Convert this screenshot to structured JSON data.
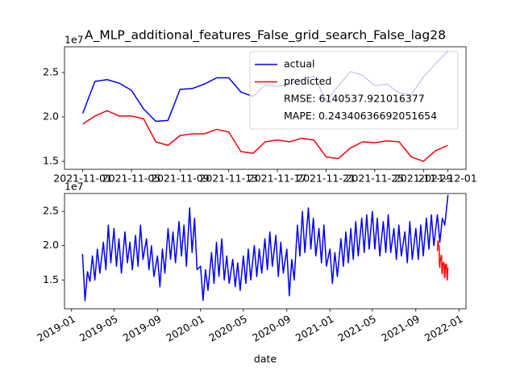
{
  "chart_data": [
    {
      "type": "line",
      "title": "A_MLP_additional_features_False_grid_search_False_lag28",
      "offset_text": "1e7",
      "legend": "upper right",
      "legend_notes": [
        "RMSE: 6140537.921016377",
        "MAPE: 0.24340636692051654"
      ],
      "grid": false,
      "x": [
        "2021-11-01",
        "2021-11-02",
        "2021-11-03",
        "2021-11-04",
        "2021-11-05",
        "2021-11-06",
        "2021-11-07",
        "2021-11-08",
        "2021-11-09",
        "2021-11-10",
        "2021-11-11",
        "2021-11-12",
        "2021-11-13",
        "2021-11-14",
        "2021-11-15",
        "2021-11-16",
        "2021-11-17",
        "2021-11-18",
        "2021-11-19",
        "2021-11-20",
        "2021-11-21",
        "2021-11-22",
        "2021-11-23",
        "2021-11-24",
        "2021-11-25",
        "2021-11-26",
        "2021-11-27",
        "2021-11-28",
        "2021-11-29",
        "2021-11-30",
        "2021-12-01"
      ],
      "series": [
        {
          "name": "actual",
          "color": "#0000ff",
          "values": [
            20400000.0,
            24000000.0,
            24200000.0,
            23800000.0,
            23000000.0,
            20900000.0,
            19500000.0,
            19600000.0,
            23100000.0,
            23200000.0,
            23700000.0,
            24400000.0,
            24400000.0,
            22800000.0,
            22300000.0,
            23600000.0,
            23400000.0,
            23700000.0,
            24200000.0,
            24600000.0,
            21800000.0,
            23500000.0,
            25100000.0,
            24700000.0,
            23500000.0,
            23700000.0,
            22700000.0,
            22500000.0,
            24500000.0,
            26000000.0,
            27400000.0
          ]
        },
        {
          "name": "predicted",
          "color": "#ff0000",
          "values": [
            19200000.0,
            20100000.0,
            20700000.0,
            20100000.0,
            20100000.0,
            19800000.0,
            17200000.0,
            16800000.0,
            17900000.0,
            18100000.0,
            18100000.0,
            18600000.0,
            18300000.0,
            16100000.0,
            15900000.0,
            17200000.0,
            17400000.0,
            17200000.0,
            17600000.0,
            17400000.0,
            15500000.0,
            15300000.0,
            16500000.0,
            17200000.0,
            17100000.0,
            17300000.0,
            17200000.0,
            15500000.0,
            15000000.0,
            16200000.0,
            16800000.0
          ]
        }
      ],
      "xlim": [
        "2021-10-30T12:00",
        "2021-12-02T12:00"
      ],
      "xticks": [
        "2021-11-01",
        "2021-11-05",
        "2021-11-09",
        "2021-11-13",
        "2021-11-17",
        "2021-11-21",
        "2021-11-25",
        "2021-11-29",
        "2021-12-01"
      ],
      "ylim": [
        14100000.0,
        27900000.0
      ],
      "yticks": [
        {
          "value": 15000000.0,
          "label": "1.5"
        },
        {
          "value": 20000000.0,
          "label": "2.0"
        },
        {
          "value": 25000000.0,
          "label": "2.5"
        }
      ]
    },
    {
      "type": "line",
      "offset_text": "1e7",
      "xlabel": "date",
      "grid": false,
      "x": [
        "2019-02-01",
        "2019-02-08",
        "2019-02-15",
        "2019-02-22",
        "2019-03-01",
        "2019-03-08",
        "2019-03-15",
        "2019-03-22",
        "2019-04-01",
        "2019-04-08",
        "2019-04-15",
        "2019-04-22",
        "2019-05-01",
        "2019-05-08",
        "2019-05-15",
        "2019-05-22",
        "2019-06-01",
        "2019-06-08",
        "2019-06-15",
        "2019-06-22",
        "2019-07-01",
        "2019-07-08",
        "2019-07-15",
        "2019-07-22",
        "2019-08-01",
        "2019-08-08",
        "2019-08-15",
        "2019-08-22",
        "2019-09-01",
        "2019-09-08",
        "2019-09-15",
        "2019-09-22",
        "2019-10-01",
        "2019-10-08",
        "2019-10-15",
        "2019-10-22",
        "2019-11-01",
        "2019-11-08",
        "2019-11-15",
        "2019-11-22",
        "2019-12-01",
        "2019-12-08",
        "2019-12-15",
        "2019-12-22",
        "2020-01-01",
        "2020-01-08",
        "2020-01-15",
        "2020-01-22",
        "2020-02-01",
        "2020-02-08",
        "2020-02-15",
        "2020-02-22",
        "2020-03-01",
        "2020-03-08",
        "2020-03-15",
        "2020-03-22",
        "2020-04-01",
        "2020-04-08",
        "2020-04-15",
        "2020-04-22",
        "2020-05-01",
        "2020-05-08",
        "2020-05-15",
        "2020-05-22",
        "2020-06-01",
        "2020-06-08",
        "2020-06-15",
        "2020-06-22",
        "2020-07-01",
        "2020-07-08",
        "2020-07-15",
        "2020-07-22",
        "2020-08-01",
        "2020-08-08",
        "2020-08-15",
        "2020-08-22",
        "2020-09-01",
        "2020-09-08",
        "2020-09-15",
        "2020-09-22",
        "2020-10-01",
        "2020-10-08",
        "2020-10-15",
        "2020-10-22",
        "2020-11-01",
        "2020-11-08",
        "2020-11-15",
        "2020-11-22",
        "2020-12-01",
        "2020-12-08",
        "2020-12-15",
        "2020-12-22",
        "2021-01-01",
        "2021-01-08",
        "2021-01-15",
        "2021-01-22",
        "2021-02-01",
        "2021-02-08",
        "2021-02-15",
        "2021-02-22",
        "2021-03-01",
        "2021-03-08",
        "2021-03-15",
        "2021-03-22",
        "2021-04-01",
        "2021-04-08",
        "2021-04-15",
        "2021-04-22",
        "2021-05-01",
        "2021-05-08",
        "2021-05-15",
        "2021-05-22",
        "2021-06-01",
        "2021-06-08",
        "2021-06-15",
        "2021-06-22",
        "2021-07-01",
        "2021-07-08",
        "2021-07-15",
        "2021-07-22",
        "2021-08-01",
        "2021-08-08",
        "2021-08-15",
        "2021-08-22",
        "2021-09-01",
        "2021-09-08",
        "2021-09-15",
        "2021-09-22",
        "2021-10-01",
        "2021-10-08",
        "2021-10-15",
        "2021-10-22",
        "2021-11-01",
        "2021-11-08",
        "2021-11-15",
        "2021-11-22",
        "2021-12-01"
      ],
      "series": [
        {
          "color": "#0000ff",
          "values": [
            18800000.0,
            12000000.0,
            16200000.0,
            14800000.0,
            18500000.0,
            15000000.0,
            19500000.0,
            16000000.0,
            20500000.0,
            16500000.0,
            23000000.0,
            17500000.0,
            22500000.0,
            17000000.0,
            21000000.0,
            16000000.0,
            22000000.0,
            17500000.0,
            20500000.0,
            16500000.0,
            21500000.0,
            17000000.0,
            23000000.0,
            18000000.0,
            21000000.0,
            16500000.0,
            20000000.0,
            15500000.0,
            18500000.0,
            14000000.0,
            19500000.0,
            16000000.0,
            22500000.0,
            18000000.0,
            22000000.0,
            17500000.0,
            23500000.0,
            18500000.0,
            23000000.0,
            17000000.0,
            25500000.0,
            19000000.0,
            24000000.0,
            16500000.0,
            17000000.0,
            12000000.0,
            16500000.0,
            13500000.0,
            19000000.0,
            14500000.0,
            20500000.0,
            15500000.0,
            21000000.0,
            15000000.0,
            18500000.0,
            14500000.0,
            18000000.0,
            14000000.0,
            17500000.0,
            13500000.0,
            18500000.0,
            14500000.0,
            19500000.0,
            15000000.0,
            20000000.0,
            15500000.0,
            19500000.0,
            16000000.0,
            21000000.0,
            16500000.0,
            22000000.0,
            17000000.0,
            21500000.0,
            15500000.0,
            20500000.0,
            16000000.0,
            19500000.0,
            12700000.0,
            18000000.0,
            15000000.0,
            23000000.0,
            18500000.0,
            25000000.0,
            19000000.0,
            25500000.0,
            19500000.0,
            24000000.0,
            18500000.0,
            22500000.0,
            17500000.0,
            23000000.0,
            17000000.0,
            19500000.0,
            14500000.0,
            19000000.0,
            15500000.0,
            21000000.0,
            17000000.0,
            22000000.0,
            17500000.0,
            22500000.0,
            18000000.0,
            23500000.0,
            18500000.0,
            24000000.0,
            19000000.0,
            24500000.0,
            19500000.0,
            25000000.0,
            19500000.0,
            24000000.0,
            18500000.0,
            23500000.0,
            19000000.0,
            24500000.0,
            19000000.0,
            22500000.0,
            18000000.0,
            23000000.0,
            18500000.0,
            22000000.0,
            17500000.0,
            23500000.0,
            18000000.0,
            22500000.0,
            18000000.0,
            23000000.0,
            18500000.0,
            24000000.0,
            19500000.0,
            24500000.0,
            20000000.0,
            24500000.0,
            20500000.0,
            24000000.0,
            23000000.0,
            27400000.0
          ]
        },
        {
          "color": "#ff0000",
          "x": [
            "2021-11-01",
            "2021-11-02",
            "2021-11-03",
            "2021-11-04",
            "2021-11-05",
            "2021-11-06",
            "2021-11-07",
            "2021-11-08",
            "2021-11-09",
            "2021-11-10",
            "2021-11-11",
            "2021-11-12",
            "2021-11-13",
            "2021-11-14",
            "2021-11-15",
            "2021-11-16",
            "2021-11-17",
            "2021-11-18",
            "2021-11-19",
            "2021-11-20",
            "2021-11-21",
            "2021-11-22",
            "2021-11-23",
            "2021-11-24",
            "2021-11-25",
            "2021-11-26",
            "2021-11-27",
            "2021-11-28",
            "2021-11-29",
            "2021-11-30",
            "2021-12-01"
          ],
          "values": [
            19200000.0,
            20100000.0,
            20700000.0,
            20100000.0,
            20100000.0,
            19800000.0,
            17200000.0,
            16800000.0,
            17900000.0,
            18100000.0,
            18100000.0,
            18600000.0,
            18300000.0,
            16100000.0,
            15900000.0,
            17200000.0,
            17400000.0,
            17200000.0,
            17600000.0,
            17400000.0,
            15500000.0,
            15300000.0,
            16500000.0,
            17200000.0,
            17100000.0,
            17300000.0,
            17200000.0,
            15500000.0,
            15000000.0,
            16200000.0,
            16800000.0
          ]
        }
      ],
      "xlim": [
        "2018-12-12",
        "2022-01-21"
      ],
      "xticks": [
        "2019-01",
        "2019-05",
        "2019-09",
        "2020-01",
        "2020-05",
        "2020-09",
        "2021-01",
        "2021-05",
        "2021-09",
        "2022-01"
      ],
      "ylim": [
        10800000.0,
        27600000.0
      ],
      "yticks": [
        {
          "value": 15000000.0,
          "label": "1.5"
        },
        {
          "value": 20000000.0,
          "label": "2.0"
        },
        {
          "value": 25000000.0,
          "label": "2.5"
        }
      ]
    }
  ]
}
